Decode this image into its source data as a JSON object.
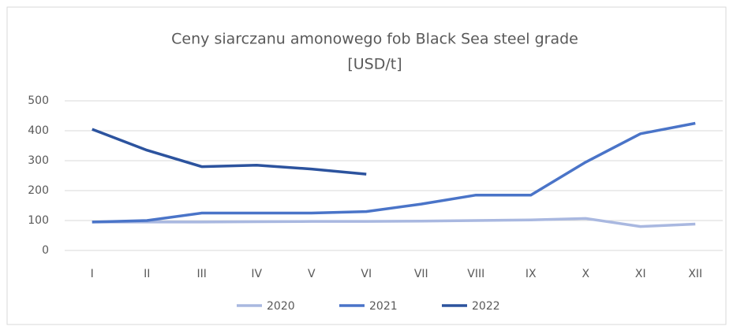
{
  "chart_data": {
    "type": "line",
    "title": "Ceny siarczanu amonowego fob Black Sea steel grade",
    "subtitle": "[USD/t]",
    "categories": [
      "I",
      "II",
      "III",
      "IV",
      "V",
      "VI",
      "VII",
      "VIII",
      "IX",
      "X",
      "XI",
      "XII"
    ],
    "series": [
      {
        "name": "2020",
        "color": "#a9b8e0",
        "values": [
          95,
          95,
          95,
          96,
          97,
          97,
          98,
          100,
          102,
          107,
          80,
          88
        ]
      },
      {
        "name": "2021",
        "color": "#4a74c8",
        "values": [
          95,
          100,
          125,
          125,
          125,
          130,
          155,
          185,
          185,
          295,
          390,
          425
        ]
      },
      {
        "name": "2022",
        "color": "#2c539e",
        "values": [
          405,
          335,
          280,
          285,
          272,
          255,
          null,
          null,
          null,
          null,
          null,
          null
        ]
      }
    ],
    "ylim": [
      0,
      500
    ],
    "yticks": [
      0,
      100,
      200,
      300,
      400,
      500
    ],
    "grid": true,
    "legend": "bottom"
  }
}
